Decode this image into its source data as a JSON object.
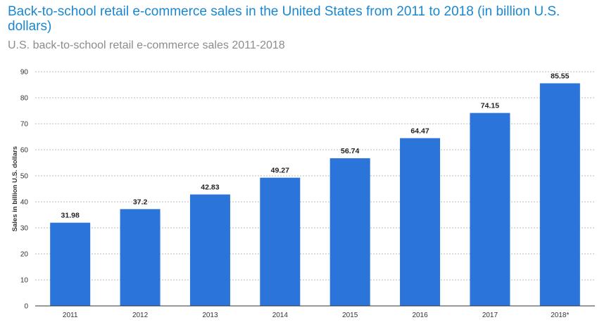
{
  "title": "Back-to-school retail e-commerce sales in the United States from 2011 to 2018 (in billion U.S. dollars)",
  "subtitle": "U.S. back-to-school retail e-commerce sales 2011-2018",
  "chart_data": {
    "type": "bar",
    "categories": [
      "2011",
      "2012",
      "2013",
      "2014",
      "2015",
      "2016",
      "2017",
      "2018*"
    ],
    "values": [
      31.98,
      37.2,
      42.83,
      49.27,
      56.74,
      64.47,
      74.15,
      85.55
    ],
    "value_labels": [
      "31.98",
      "37.2",
      "42.83",
      "49.27",
      "56.74",
      "64.47",
      "74.15",
      "85.55"
    ],
    "xlabel": "",
    "ylabel": "Sales in billion U.S. dollars",
    "ylim": [
      0,
      90
    ],
    "yticks": [
      0,
      10,
      20,
      30,
      40,
      50,
      60,
      70,
      80,
      90
    ],
    "grid": true,
    "legend": "none",
    "bar_color": "#2b74d9"
  }
}
